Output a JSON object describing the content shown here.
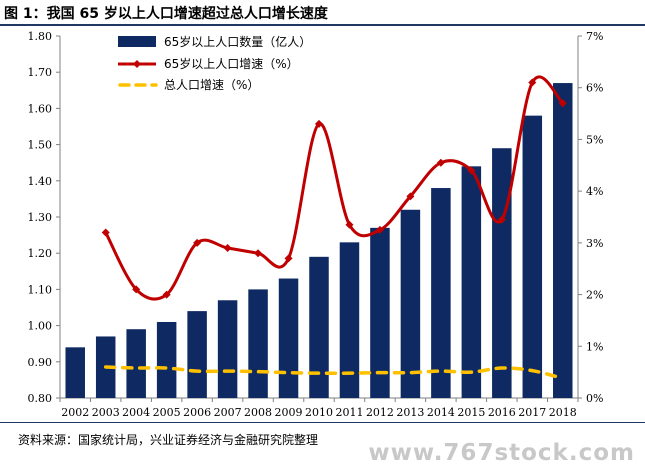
{
  "title": "图 1：我国 65 岁以上人口增速超过总人口增长速度",
  "source": "资料来源：国家统计局，兴业证券经济与金融研究院整理",
  "watermark": "www.767stock.com",
  "colors": {
    "bar": "#0f2a62",
    "line": "#c00000",
    "dash": "#ffc000",
    "rule": "#1f3864"
  },
  "chart_data": {
    "type": "bar",
    "categories": [
      "2002",
      "2003",
      "2004",
      "2005",
      "2006",
      "2007",
      "2008",
      "2009",
      "2010",
      "2011",
      "2012",
      "2013",
      "2014",
      "2015",
      "2016",
      "2017",
      "2018"
    ],
    "y_left": {
      "min": 0.8,
      "max": 1.8,
      "ticks": [
        "0.80",
        "0.90",
        "1.00",
        "1.10",
        "1.20",
        "1.30",
        "1.40",
        "1.50",
        "1.60",
        "1.70",
        "1.80"
      ]
    },
    "y_right": {
      "min": 0,
      "max": 7,
      "ticks": [
        "0%",
        "1%",
        "2%",
        "3%",
        "4%",
        "5%",
        "6%",
        "7%"
      ]
    },
    "legend_position": "top-left",
    "series": [
      {
        "name": "65岁以上人口数量（亿人）",
        "type": "bar",
        "axis": "left",
        "values": [
          0.94,
          0.97,
          0.99,
          1.01,
          1.04,
          1.07,
          1.1,
          1.13,
          1.19,
          1.23,
          1.27,
          1.32,
          1.38,
          1.44,
          1.49,
          1.58,
          1.67
        ]
      },
      {
        "name": "65岁以上人口增速（%）",
        "type": "line",
        "axis": "right",
        "smooth": true,
        "values": [
          null,
          3.2,
          2.1,
          2.0,
          3.0,
          2.9,
          2.8,
          2.7,
          5.3,
          3.35,
          3.25,
          3.9,
          4.55,
          4.4,
          3.45,
          6.1,
          5.7
        ]
      },
      {
        "name": "总人口增速（%）",
        "type": "line",
        "axis": "right",
        "dashed": true,
        "values": [
          null,
          0.6,
          0.58,
          0.58,
          0.52,
          0.52,
          0.51,
          0.49,
          0.48,
          0.48,
          0.49,
          0.49,
          0.52,
          0.5,
          0.58,
          0.53,
          0.38
        ]
      }
    ]
  }
}
